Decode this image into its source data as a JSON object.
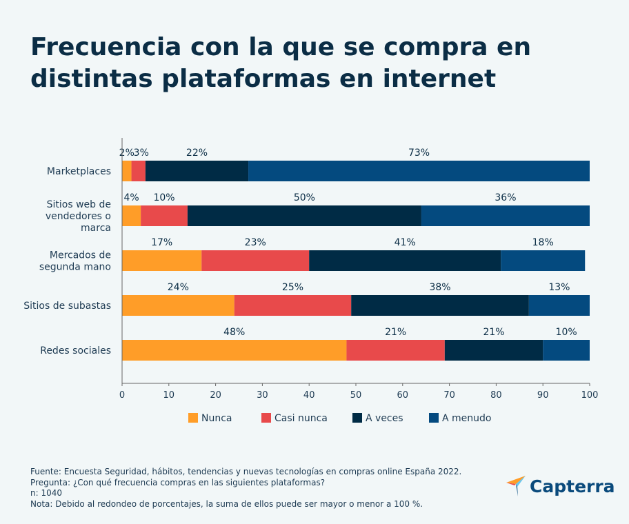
{
  "title": "Frecuencia con la que se compra en distintas plataformas en internet",
  "chart_data": {
    "type": "bar",
    "orientation": "horizontal",
    "stacked": true,
    "categories": [
      "Marketplaces",
      "Sitios web de vendedores o marca",
      "Mercados de segunda mano",
      "Sitios de subastas",
      "Redes sociales"
    ],
    "category_lines": [
      [
        "Marketplaces"
      ],
      [
        "Sitios web de",
        "vendedores o",
        "marca"
      ],
      [
        "Mercados de",
        "segunda mano"
      ],
      [
        "Sitios de subastas"
      ],
      [
        "Redes sociales"
      ]
    ],
    "series": [
      {
        "name": "Nunca",
        "color": "#ff9d28",
        "values": [
          2,
          4,
          17,
          24,
          48
        ]
      },
      {
        "name": "Casi nunca",
        "color": "#e84a4b",
        "values": [
          3,
          10,
          23,
          25,
          21
        ]
      },
      {
        "name": "A veces",
        "color": "#002b45",
        "values": [
          22,
          50,
          41,
          38,
          21
        ]
      },
      {
        "name": "A menudo",
        "color": "#044a7f",
        "values": [
          73,
          36,
          18,
          13,
          10
        ]
      }
    ],
    "value_suffix": "%",
    "xlim": [
      0,
      100
    ],
    "xticks": [
      0,
      10,
      20,
      30,
      40,
      50,
      60,
      70,
      80,
      90,
      100
    ],
    "grid": false,
    "legend_position": "bottom"
  },
  "notes": [
    "Fuente: Encuesta Seguridad, hábitos, tendencias y nuevas tecnologías en compras online España 2022.",
    "Pregunta: ¿Con qué frecuencia compras en las siguientes plataformas?",
    "n: 1040",
    "Nota: Debido al redondeo de porcentajes, la suma de ellos puede ser mayor o menor a 100 %."
  ],
  "logo": {
    "text": "Capterra"
  }
}
